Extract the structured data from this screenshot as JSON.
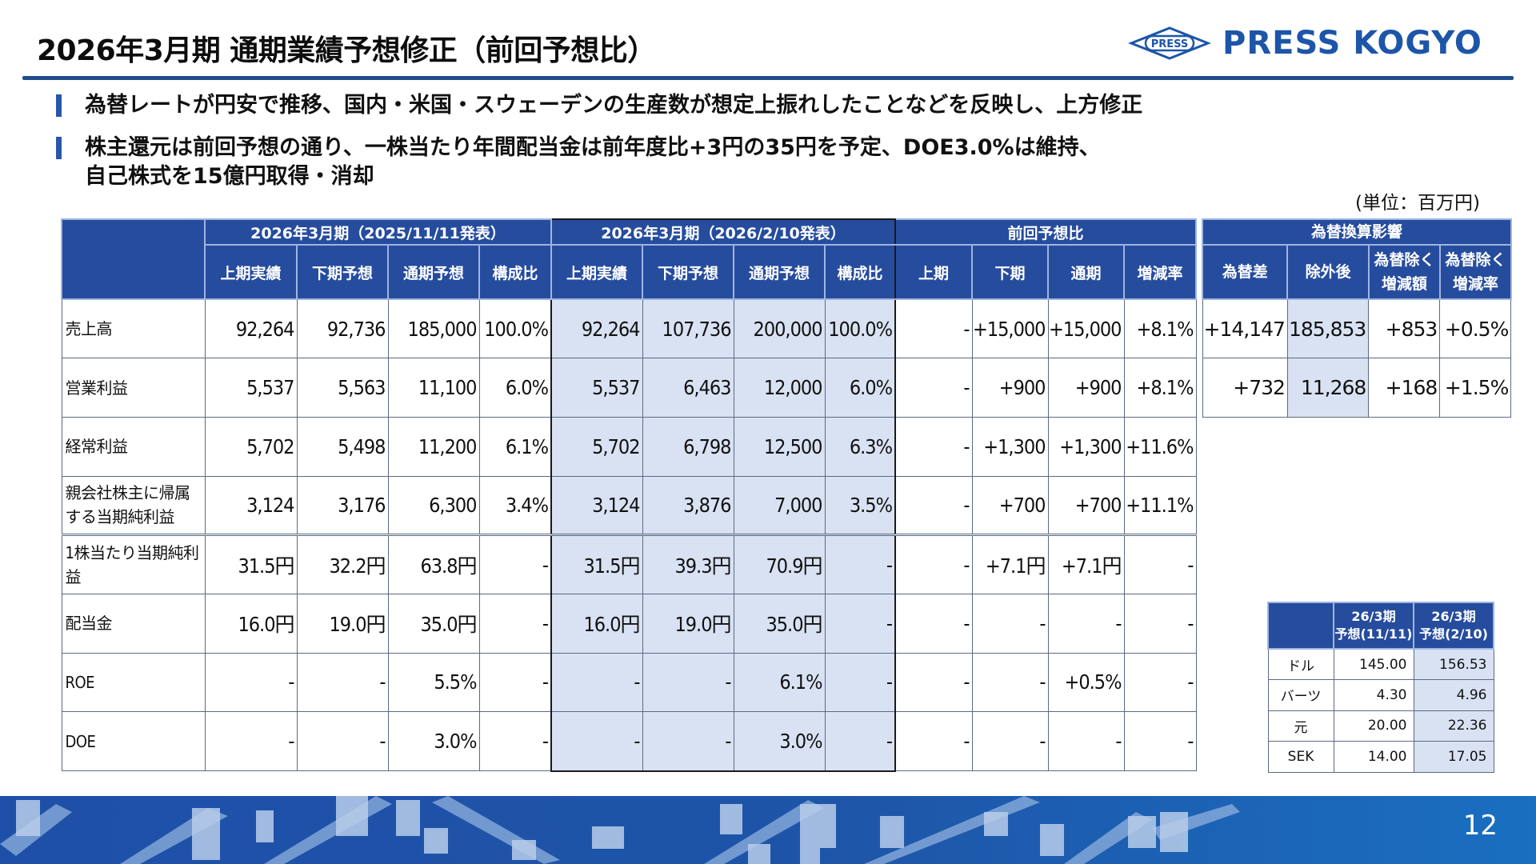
{
  "header": {
    "title": "2026年3月期 通期業績予想修正（前回予想比）",
    "logo_text": "PRESS KOGYO",
    "logo_mark_text": "PRESS",
    "brand_color": "#1d55a8"
  },
  "bullets": [
    {
      "line1": "為替レートが円安で推移、国内・米国・スウェーデンの生産数が想定上振れしたことなどを反映し、上方修正",
      "line2": ""
    },
    {
      "line1": "株主還元は前回予想の通り、一株当たり年間配当金は前年度比+3円の35円を予定、DOE3.0%は維持、",
      "line2": "自己株式を15億円取得・消却"
    }
  ],
  "unit_label": "(単位：百万円)",
  "main_table": {
    "groups": [
      {
        "label": "2026年3月期（2025/11/11発表）",
        "span": 4
      },
      {
        "label": "2026年3月期（2026/2/10発表）",
        "span": 4
      },
      {
        "label": "前回予想比",
        "span": 4
      }
    ],
    "columns": [
      "上期実績",
      "下期予想",
      "通期予想",
      "構成比",
      "上期実績",
      "下期予想",
      "通期予想",
      "構成比",
      "上期",
      "下期",
      "通期",
      "増減率"
    ],
    "rows": [
      {
        "label": "売上高",
        "values": [
          "92,264",
          "92,736",
          "185,000",
          "100.0%",
          "92,264",
          "107,736",
          "200,000",
          "100.0%",
          "-",
          "+15,000",
          "+15,000",
          "+8.1%"
        ]
      },
      {
        "label": "営業利益",
        "values": [
          "5,537",
          "5,563",
          "11,100",
          "6.0%",
          "5,537",
          "6,463",
          "12,000",
          "6.0%",
          "-",
          "+900",
          "+900",
          "+8.1%"
        ]
      },
      {
        "label": "経常利益",
        "values": [
          "5,702",
          "5,498",
          "11,200",
          "6.1%",
          "5,702",
          "6,798",
          "12,500",
          "6.3%",
          "-",
          "+1,300",
          "+1,300",
          "+11.6%"
        ]
      },
      {
        "label": "親会社株主に帰属する当期純利益",
        "values": [
          "3,124",
          "3,176",
          "6,300",
          "3.4%",
          "3,124",
          "3,876",
          "7,000",
          "3.5%",
          "-",
          "+700",
          "+700",
          "+11.1%"
        ]
      },
      {
        "label": "1株当たり当期純利益",
        "values": [
          "31.5円",
          "32.2円",
          "63.8円",
          "-",
          "31.5円",
          "39.3円",
          "70.9円",
          "-",
          "-",
          "+7.1円",
          "+7.1円",
          "-"
        ]
      },
      {
        "label": "配当金",
        "values": [
          "16.0円",
          "19.0円",
          "35.0円",
          "-",
          "16.0円",
          "19.0円",
          "35.0円",
          "-",
          "-",
          "-",
          "-",
          "-"
        ]
      },
      {
        "label": "ROE",
        "values": [
          "-",
          "-",
          "5.5%",
          "-",
          "-",
          "-",
          "6.1%",
          "-",
          "-",
          "-",
          "+0.5%",
          "-"
        ]
      },
      {
        "label": "DOE",
        "values": [
          "-",
          "-",
          "3.0%",
          "-",
          "-",
          "-",
          "3.0%",
          "-",
          "-",
          "-",
          "-",
          "-"
        ]
      }
    ]
  },
  "fx_impact_table": {
    "title": "為替換算影響",
    "columns": [
      {
        "line1": "為替差",
        "line2": ""
      },
      {
        "line1": "除外後",
        "line2": ""
      },
      {
        "line1": "為替除く",
        "line2": "増減額"
      },
      {
        "line1": "為替除く",
        "line2": "増減率"
      }
    ],
    "rows": [
      {
        "values": [
          "+14,147",
          "185,853",
          "+853",
          "+0.5%"
        ]
      },
      {
        "values": [
          "+732",
          "11,268",
          "+168",
          "+1.5%"
        ]
      }
    ]
  },
  "rate_table": {
    "columns": [
      {
        "line1": "26/3期",
        "line2": "予想(11/11)"
      },
      {
        "line1": "26/3期",
        "line2": "予想(2/10)"
      }
    ],
    "rows": [
      {
        "label": "ドル",
        "values": [
          "145.00",
          "156.53"
        ]
      },
      {
        "label": "バーツ",
        "values": [
          "4.30",
          "4.96"
        ]
      },
      {
        "label": "元",
        "values": [
          "20.00",
          "22.36"
        ]
      },
      {
        "label": "SEK",
        "values": [
          "14.00",
          "17.05"
        ]
      }
    ]
  },
  "footer": {
    "page_number": "12"
  },
  "colors": {
    "header_blue": "#264c9e",
    "highlight": "#d9e2f3",
    "rule": "#1f4e8c"
  }
}
